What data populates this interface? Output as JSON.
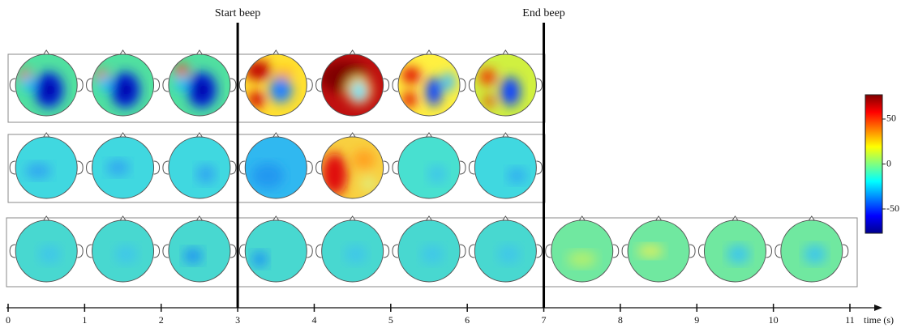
{
  "events": [
    {
      "label": "Start beep",
      "time": 3
    },
    {
      "label": "End beep",
      "time": 7
    }
  ],
  "time_axis": {
    "label": "time (s)",
    "lim": [
      0,
      11
    ],
    "ticks": [
      0,
      1,
      2,
      3,
      4,
      5,
      6,
      7,
      8,
      9,
      10,
      11
    ]
  },
  "colorbar": {
    "lim": [
      -77,
      77
    ],
    "ticks": [
      50,
      0,
      -50
    ]
  }
}
